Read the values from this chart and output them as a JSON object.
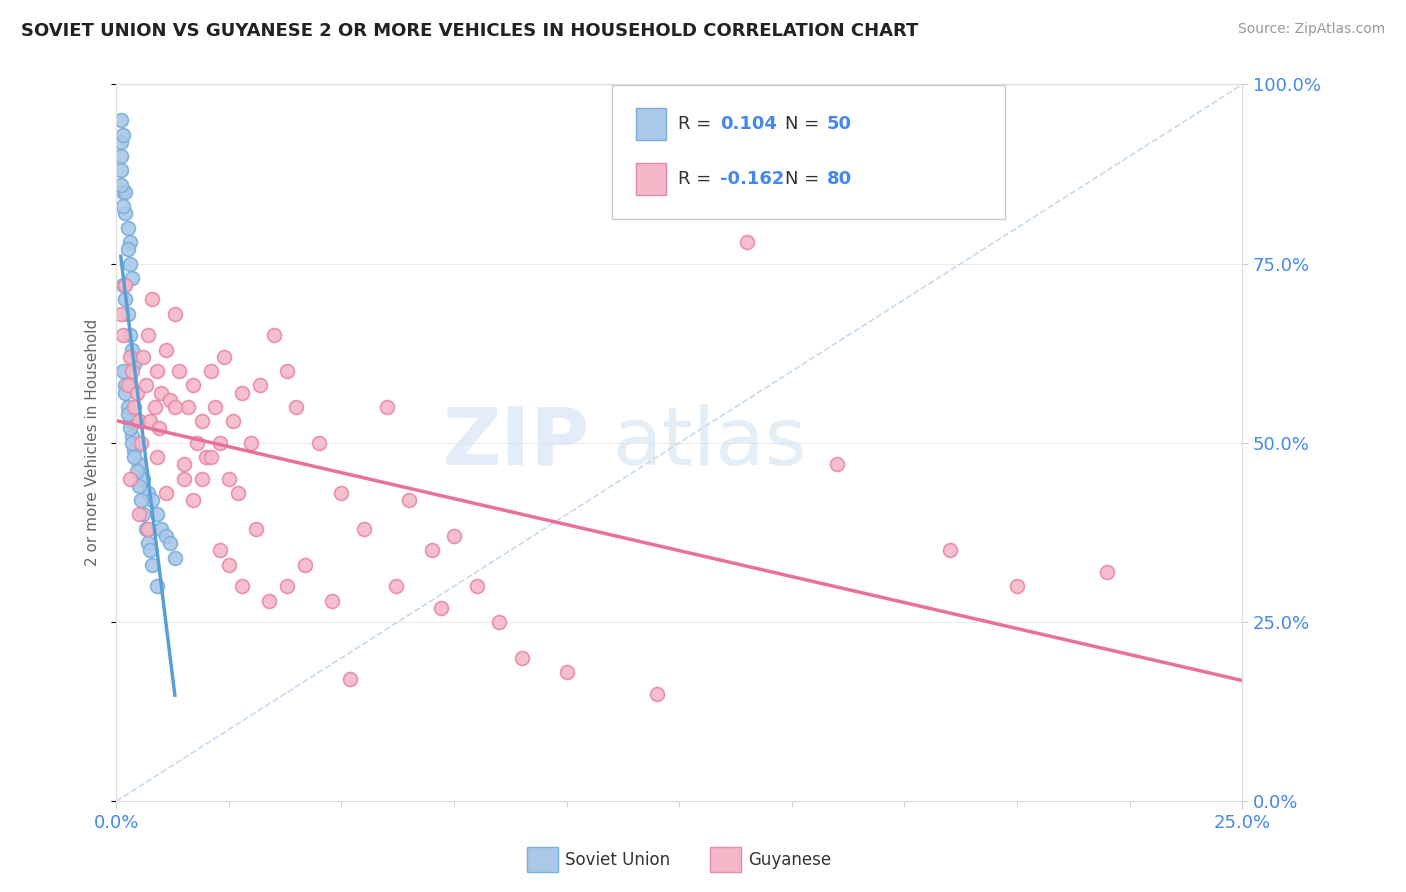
{
  "title": "SOVIET UNION VS GUYANESE 2 OR MORE VEHICLES IN HOUSEHOLD CORRELATION CHART",
  "source": "Source: ZipAtlas.com",
  "ylabel": "2 or more Vehicles in Household",
  "xlim": [
    0.0,
    25.0
  ],
  "ylim": [
    0.0,
    100.0
  ],
  "legend_label1": "Soviet Union",
  "legend_label2": "Guyanese",
  "R1": 0.104,
  "N1": 50,
  "R2": -0.162,
  "N2": 80,
  "color_soviet_fill": "#aac8e8",
  "color_soviet_edge": "#7aaedc",
  "color_guyanese_fill": "#f5b8c8",
  "color_guyanese_edge": "#e888a8",
  "color_soviet_line": "#5a9fd4",
  "color_guyanese_line": "#e8709a",
  "color_ref_line": "#b8d0ee",
  "background_color": "#ffffff",
  "tick_color": "#4488ee",
  "watermark_zip_color": "#ccddf5",
  "watermark_atlas_color": "#cce0f0",
  "soviet_x": [
    0.1,
    0.1,
    0.15,
    0.3,
    0.2,
    0.25,
    0.25,
    0.3,
    0.35,
    0.2,
    0.15,
    0.1,
    0.1,
    0.15,
    0.2,
    0.25,
    0.3,
    0.35,
    0.4,
    0.1,
    0.15,
    0.2,
    0.25,
    0.3,
    0.35,
    0.4,
    0.5,
    0.6,
    0.7,
    0.8,
    0.9,
    1.0,
    1.1,
    1.2,
    0.15,
    0.2,
    0.25,
    0.3,
    0.35,
    0.4,
    0.45,
    0.5,
    0.55,
    0.6,
    0.65,
    0.7,
    0.75,
    0.8,
    0.9,
    1.3
  ],
  "soviet_y": [
    92,
    88,
    85,
    78,
    82,
    80,
    77,
    75,
    73,
    85,
    83,
    90,
    86,
    72,
    70,
    68,
    65,
    63,
    61,
    95,
    93,
    58,
    55,
    53,
    51,
    49,
    47,
    45,
    43,
    42,
    40,
    38,
    37,
    36,
    60,
    57,
    54,
    52,
    50,
    48,
    46,
    44,
    42,
    40,
    38,
    36,
    35,
    33,
    30,
    34
  ],
  "guyanese_x": [
    0.1,
    0.15,
    0.2,
    0.25,
    0.3,
    0.35,
    0.4,
    0.45,
    0.5,
    0.55,
    0.6,
    0.65,
    0.7,
    0.75,
    0.8,
    0.85,
    0.9,
    0.95,
    1.0,
    1.1,
    1.2,
    1.3,
    1.4,
    1.5,
    1.6,
    1.7,
    1.8,
    1.9,
    2.0,
    2.1,
    2.2,
    2.3,
    2.4,
    2.5,
    2.6,
    2.7,
    2.8,
    3.0,
    3.2,
    3.5,
    3.8,
    4.0,
    4.5,
    5.0,
    5.5,
    6.0,
    6.5,
    7.0,
    7.5,
    8.0,
    0.3,
    0.5,
    0.7,
    0.9,
    1.1,
    1.3,
    1.5,
    1.7,
    1.9,
    2.1,
    2.3,
    2.5,
    2.8,
    3.1,
    3.4,
    3.8,
    4.2,
    4.8,
    5.2,
    6.2,
    7.2,
    8.5,
    10.0,
    12.0,
    14.0,
    16.0,
    18.5,
    20.0,
    22.0,
    9.0
  ],
  "guyanese_y": [
    68,
    65,
    72,
    58,
    62,
    60,
    55,
    57,
    53,
    50,
    62,
    58,
    65,
    53,
    70,
    55,
    60,
    52,
    57,
    63,
    56,
    68,
    60,
    45,
    55,
    58,
    50,
    53,
    48,
    60,
    55,
    50,
    62,
    45,
    53,
    43,
    57,
    50,
    58,
    65,
    60,
    55,
    50,
    43,
    38,
    55,
    42,
    35,
    37,
    30,
    45,
    40,
    38,
    48,
    43,
    55,
    47,
    42,
    45,
    48,
    35,
    33,
    30,
    38,
    28,
    30,
    33,
    28,
    17,
    30,
    27,
    25,
    18,
    15,
    78,
    47,
    35,
    30,
    32,
    20
  ]
}
